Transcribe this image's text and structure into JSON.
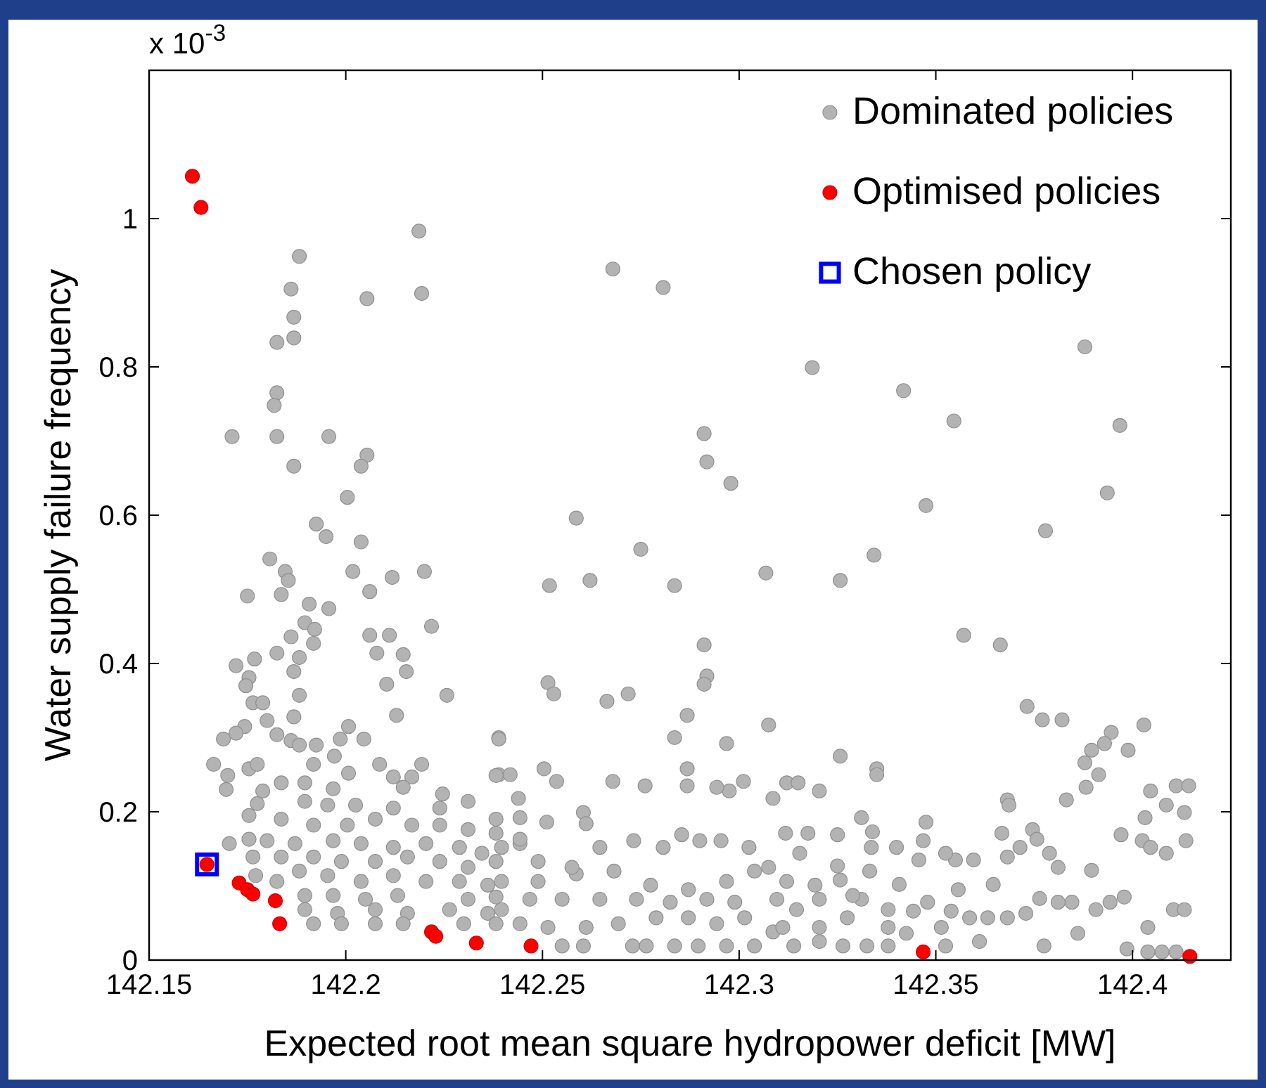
{
  "chart_data": {
    "type": "scatter",
    "xlabel": "Expected root mean square hydropower deficit [MW]",
    "ylabel": "Water supply failure frequency",
    "annotations": [
      "x 10$^{-3}$"
    ],
    "xlim": [
      142.15,
      142.425
    ],
    "xticks": [
      142.15,
      142.2,
      142.25,
      142.3,
      142.35,
      142.4
    ],
    "ylim": [
      0,
      1.2
    ],
    "yticks": [
      0,
      0.2,
      0.4,
      0.6,
      0.8,
      1
    ],
    "grid": false,
    "legend": "top right",
    "series": [
      {
        "name": "Dominated policies",
        "color": "#b3b3b3",
        "marker": "circle",
        "x": [
          142.2186,
          142.1882,
          142.1861,
          142.2054,
          142.2193,
          142.1868,
          142.1868,
          142.1825,
          142.1825,
          142.1818,
          142.1711,
          142.1825,
          142.1957,
          142.2054,
          142.2039,
          142.1868,
          142.2004,
          142.1925,
          142.195,
          142.2039,
          142.2679,
          142.2807,
          142.3879,
          142.3186,
          142.3418,
          142.3546,
          142.3968,
          142.2911,
          142.2918,
          142.2979,
          142.2586,
          142.3475,
          142.3936,
          142.3779,
          142.275,
          142.3343,
          142.2518,
          142.2621,
          142.2836,
          142.3068,
          142.3257,
          142.3571,
          142.3664,
          142.2911,
          142.2389,
          142.2514,
          142.2529,
          142.2664,
          142.2718,
          142.2918,
          142.2911,
          142.2868,
          142.2836,
          142.2968,
          142.3075,
          142.3257,
          142.335,
          142.335,
          142.3732,
          142.3771,
          142.3821,
          142.4029,
          142.3946,
          142.3929,
          142.3896,
          142.3879,
          142.3989,
          142.3914,
          142.3882,
          142.3832,
          142.3682,
          142.3686,
          142.4046,
          142.4111,
          142.4143,
          142.4086,
          142.4132,
          142.4032,
          142.3971,
          142.4025,
          142.4046,
          142.4086,
          142.4136,
          142.4104,
          142.4132,
          142.3979,
          142.3907,
          142.3896,
          142.3746,
          142.3757,
          142.3714,
          142.3789,
          142.3811,
          142.3668,
          142.3682,
          142.3646,
          142.3596,
          142.355,
          142.3525,
          142.3475,
          142.3468,
          142.3457,
          142.3557,
          142.34,
          142.3336,
          142.3339,
          142.3311,
          142.325,
          142.325,
          142.3175,
          142.3118,
          142.3154,
          142.3121,
          142.315,
          142.3086,
          142.3204,
          142.3011,
          142.2975,
          142.2943,
          142.2868,
          142.2868,
          142.2761,
          142.2679,
          142.2536,
          142.2504,
          142.2439,
          142.2389,
          142.2418,
          142.2511,
          142.2604,
          142.2611,
          142.2954,
          142.3025,
          142.2854,
          142.29,
          142.2732,
          142.2807,
          142.3075,
          142.3257,
          142.3332,
          142.3407,
          142.3479,
          142.3729,
          142.3846,
          142.3861,
          142.3775,
          142.3986,
          142.4039,
          142.4075,
          142.4111,
          142.4039,
          142.3611,
          142.3525,
          142.3379,
          142.3325,
          142.3264,
          142.3204,
          142.3139,
          142.3086,
          142.3039,
          142.2968,
          142.2896,
          142.2836,
          142.2764,
          142.2729,
          142.2604,
          142.255,
          142.3425,
          142.3379,
          142.3682,
          142.3586,
          142.3514,
          142.3275,
          142.3204,
          142.3111,
          142.3014,
          142.2943,
          142.2871,
          142.2789,
          142.2693,
          142.2611,
          142.2514,
          142.2443,
          142.2396,
          142.2468,
          142.255,
          142.2646,
          142.2739,
          142.2825,
          142.2918,
          142.2989,
          142.3096,
          142.3146,
          142.3204,
          142.3311,
          142.3379,
          142.3443,
          142.3539,
          142.3632,
          142.3764,
          142.3811,
          142.3943,
          142.2396,
          142.2489,
          142.2586,
          142.2682,
          142.2775,
          142.2871,
          142.2968,
          142.3039,
          142.3121,
          142.3193,
          142.3289,
          142.2489,
          142.2575,
          142.2646,
          142.2443,
          142.2396,
          142.2443,
          142.2443,
          142.1807,
          142.1846,
          142.1854,
          142.175,
          142.1836,
          142.2018,
          142.2118,
          142.22,
          142.2061,
          142.1907,
          142.1957,
          142.2218,
          142.1896,
          142.1921,
          142.1861,
          142.1918,
          142.2061,
          142.2111,
          142.2079,
          142.2146,
          142.1825,
          142.1882,
          142.1768,
          142.1721,
          142.1868,
          142.2154,
          142.1754,
          142.1746,
          142.2104,
          142.2257,
          142.1882,
          142.1764,
          142.1789,
          142.1868,
          142.2129,
          142.18,
          142.2007,
          142.1743,
          142.1721,
          142.1689,
          142.1825,
          142.1861,
          142.2046,
          142.1986,
          142.1925,
          142.1882,
          142.2389,
          142.1971,
          142.1664,
          142.17,
          142.1696,
          142.1754,
          142.1775,
          142.1918,
          142.2007,
          142.2086,
          142.2193,
          142.2121,
          142.2168,
          142.2146,
          142.2246,
          142.2311,
          142.2382,
          142.1968,
          142.1896,
          142.1836,
          142.1789,
          142.2239,
          142.2121,
          142.2025,
          142.1954,
          142.1896,
          142.1775,
          142.1754,
          142.1836,
          142.1918,
          142.2004,
          142.2075,
          142.2168,
          142.2239,
          142.2311,
          142.2382,
          142.2382,
          142.1704,
          142.1754,
          142.18,
          142.1871,
          142.1968,
          142.2039,
          142.2121,
          142.2204,
          142.2289,
          142.2346,
          142.1764,
          142.1836,
          142.1918,
          142.1989,
          142.2075,
          142.2157,
          142.2239,
          142.2311,
          142.2382,
          142.1771,
          142.1825,
          142.1882,
          142.1954,
          142.2039,
          142.2121,
          142.2204,
          142.2289,
          142.2361,
          142.1896,
          142.1968,
          142.205,
          142.2132,
          142.2311,
          142.2382,
          142.1896,
          142.1979,
          142.2075,
          142.2157,
          142.2264,
          142.2361,
          142.1918,
          142.1989,
          142.2075,
          142.2146,
          142.23,
          142.2382
        ],
        "values": [
          0.983,
          0.949,
          0.905,
          0.892,
          0.899,
          0.867,
          0.839,
          0.833,
          0.765,
          0.748,
          0.706,
          0.706,
          0.706,
          0.681,
          0.666,
          0.666,
          0.624,
          0.588,
          0.571,
          0.564,
          0.932,
          0.907,
          0.827,
          0.799,
          0.768,
          0.727,
          0.721,
          0.71,
          0.672,
          0.643,
          0.596,
          0.613,
          0.63,
          0.579,
          0.554,
          0.546,
          0.505,
          0.512,
          0.505,
          0.522,
          0.512,
          0.438,
          0.425,
          0.425,
          0.3,
          0.374,
          0.359,
          0.349,
          0.359,
          0.383,
          0.372,
          0.33,
          0.3,
          0.292,
          0.317,
          0.275,
          0.258,
          0.25,
          0.342,
          0.324,
          0.324,
          0.317,
          0.307,
          0.292,
          0.283,
          0.266,
          0.283,
          0.25,
          0.233,
          0.216,
          0.216,
          0.209,
          0.228,
          0.235,
          0.235,
          0.209,
          0.199,
          0.192,
          0.169,
          0.161,
          0.152,
          0.144,
          0.161,
          0.068,
          0.068,
          0.085,
          0.068,
          0.121,
          0.176,
          0.163,
          0.152,
          0.144,
          0.125,
          0.171,
          0.139,
          0.102,
          0.135,
          0.135,
          0.144,
          0.186,
          0.161,
          0.135,
          0.095,
          0.152,
          0.152,
          0.173,
          0.192,
          0.169,
          0.127,
          0.171,
          0.171,
          0.144,
          0.239,
          0.239,
          0.218,
          0.228,
          0.241,
          0.228,
          0.233,
          0.258,
          0.235,
          0.235,
          0.241,
          0.241,
          0.258,
          0.218,
          0.25,
          0.25,
          0.186,
          0.199,
          0.184,
          0.161,
          0.152,
          0.169,
          0.161,
          0.161,
          0.152,
          0.125,
          0.108,
          0.12,
          0.102,
          0.078,
          0.063,
          0.078,
          0.036,
          0.019,
          0.015,
          0.011,
          0.011,
          0.011,
          0.044,
          0.025,
          0.019,
          0.019,
          0.019,
          0.019,
          0.025,
          0.019,
          0.038,
          0.019,
          0.019,
          0.019,
          0.019,
          0.019,
          0.019,
          0.019,
          0.019,
          0.036,
          0.044,
          0.057,
          0.057,
          0.044,
          0.057,
          0.044,
          0.044,
          0.057,
          0.049,
          0.057,
          0.057,
          0.049,
          0.044,
          0.044,
          0.049,
          0.068,
          0.082,
          0.082,
          0.082,
          0.082,
          0.078,
          0.082,
          0.078,
          0.082,
          0.068,
          0.082,
          0.082,
          0.068,
          0.066,
          0.066,
          0.057,
          0.083,
          0.078,
          0.078,
          0.106,
          0.106,
          0.116,
          0.12,
          0.101,
          0.095,
          0.106,
          0.12,
          0.106,
          0.101,
          0.087,
          0.133,
          0.125,
          0.152,
          0.157,
          0.152,
          0.192,
          0.163,
          0.541,
          0.524,
          0.512,
          0.491,
          0.493,
          0.524,
          0.516,
          0.524,
          0.497,
          0.48,
          0.474,
          0.45,
          0.455,
          0.446,
          0.436,
          0.427,
          0.438,
          0.438,
          0.414,
          0.412,
          0.414,
          0.408,
          0.406,
          0.397,
          0.389,
          0.389,
          0.381,
          0.37,
          0.372,
          0.357,
          0.357,
          0.347,
          0.347,
          0.328,
          0.33,
          0.323,
          0.315,
          0.315,
          0.306,
          0.298,
          0.304,
          0.296,
          0.298,
          0.298,
          0.29,
          0.29,
          0.298,
          0.275,
          0.264,
          0.249,
          0.23,
          0.258,
          0.264,
          0.264,
          0.252,
          0.264,
          0.264,
          0.247,
          0.247,
          0.233,
          0.224,
          0.214,
          0.249,
          0.231,
          0.239,
          0.239,
          0.228,
          0.205,
          0.205,
          0.209,
          0.209,
          0.214,
          0.211,
          0.195,
          0.19,
          0.182,
          0.182,
          0.19,
          0.182,
          0.182,
          0.176,
          0.19,
          0.171,
          0.157,
          0.163,
          0.161,
          0.157,
          0.161,
          0.157,
          0.152,
          0.157,
          0.152,
          0.144,
          0.139,
          0.139,
          0.139,
          0.133,
          0.133,
          0.139,
          0.133,
          0.125,
          0.133,
          0.114,
          0.106,
          0.12,
          0.114,
          0.106,
          0.114,
          0.106,
          0.106,
          0.101,
          0.087,
          0.087,
          0.082,
          0.087,
          0.082,
          0.085,
          0.068,
          0.063,
          0.068,
          0.063,
          0.068,
          0.063,
          0.049,
          0.049,
          0.049,
          0.049,
          0.049,
          0.049
        ]
      },
      {
        "name": "Optimised policies",
        "color": "#ff0000",
        "marker": "circle",
        "x": [
          142.161,
          142.1632,
          142.1647,
          142.1729,
          142.175,
          142.1764,
          142.1821,
          142.1832,
          142.2218,
          142.2229,
          142.2332,
          142.2471,
          142.3468,
          142.4146
        ],
        "values": [
          1.057,
          1.015,
          0.129,
          0.104,
          0.095,
          0.089,
          0.08,
          0.049,
          0.038,
          0.032,
          0.023,
          0.019,
          0.011,
          0.005
        ]
      },
      {
        "name": "Chosen policy",
        "color": "#0000ff",
        "marker": "square",
        "x": [
          142.1647
        ],
        "values": [
          0.129
        ]
      }
    ]
  }
}
